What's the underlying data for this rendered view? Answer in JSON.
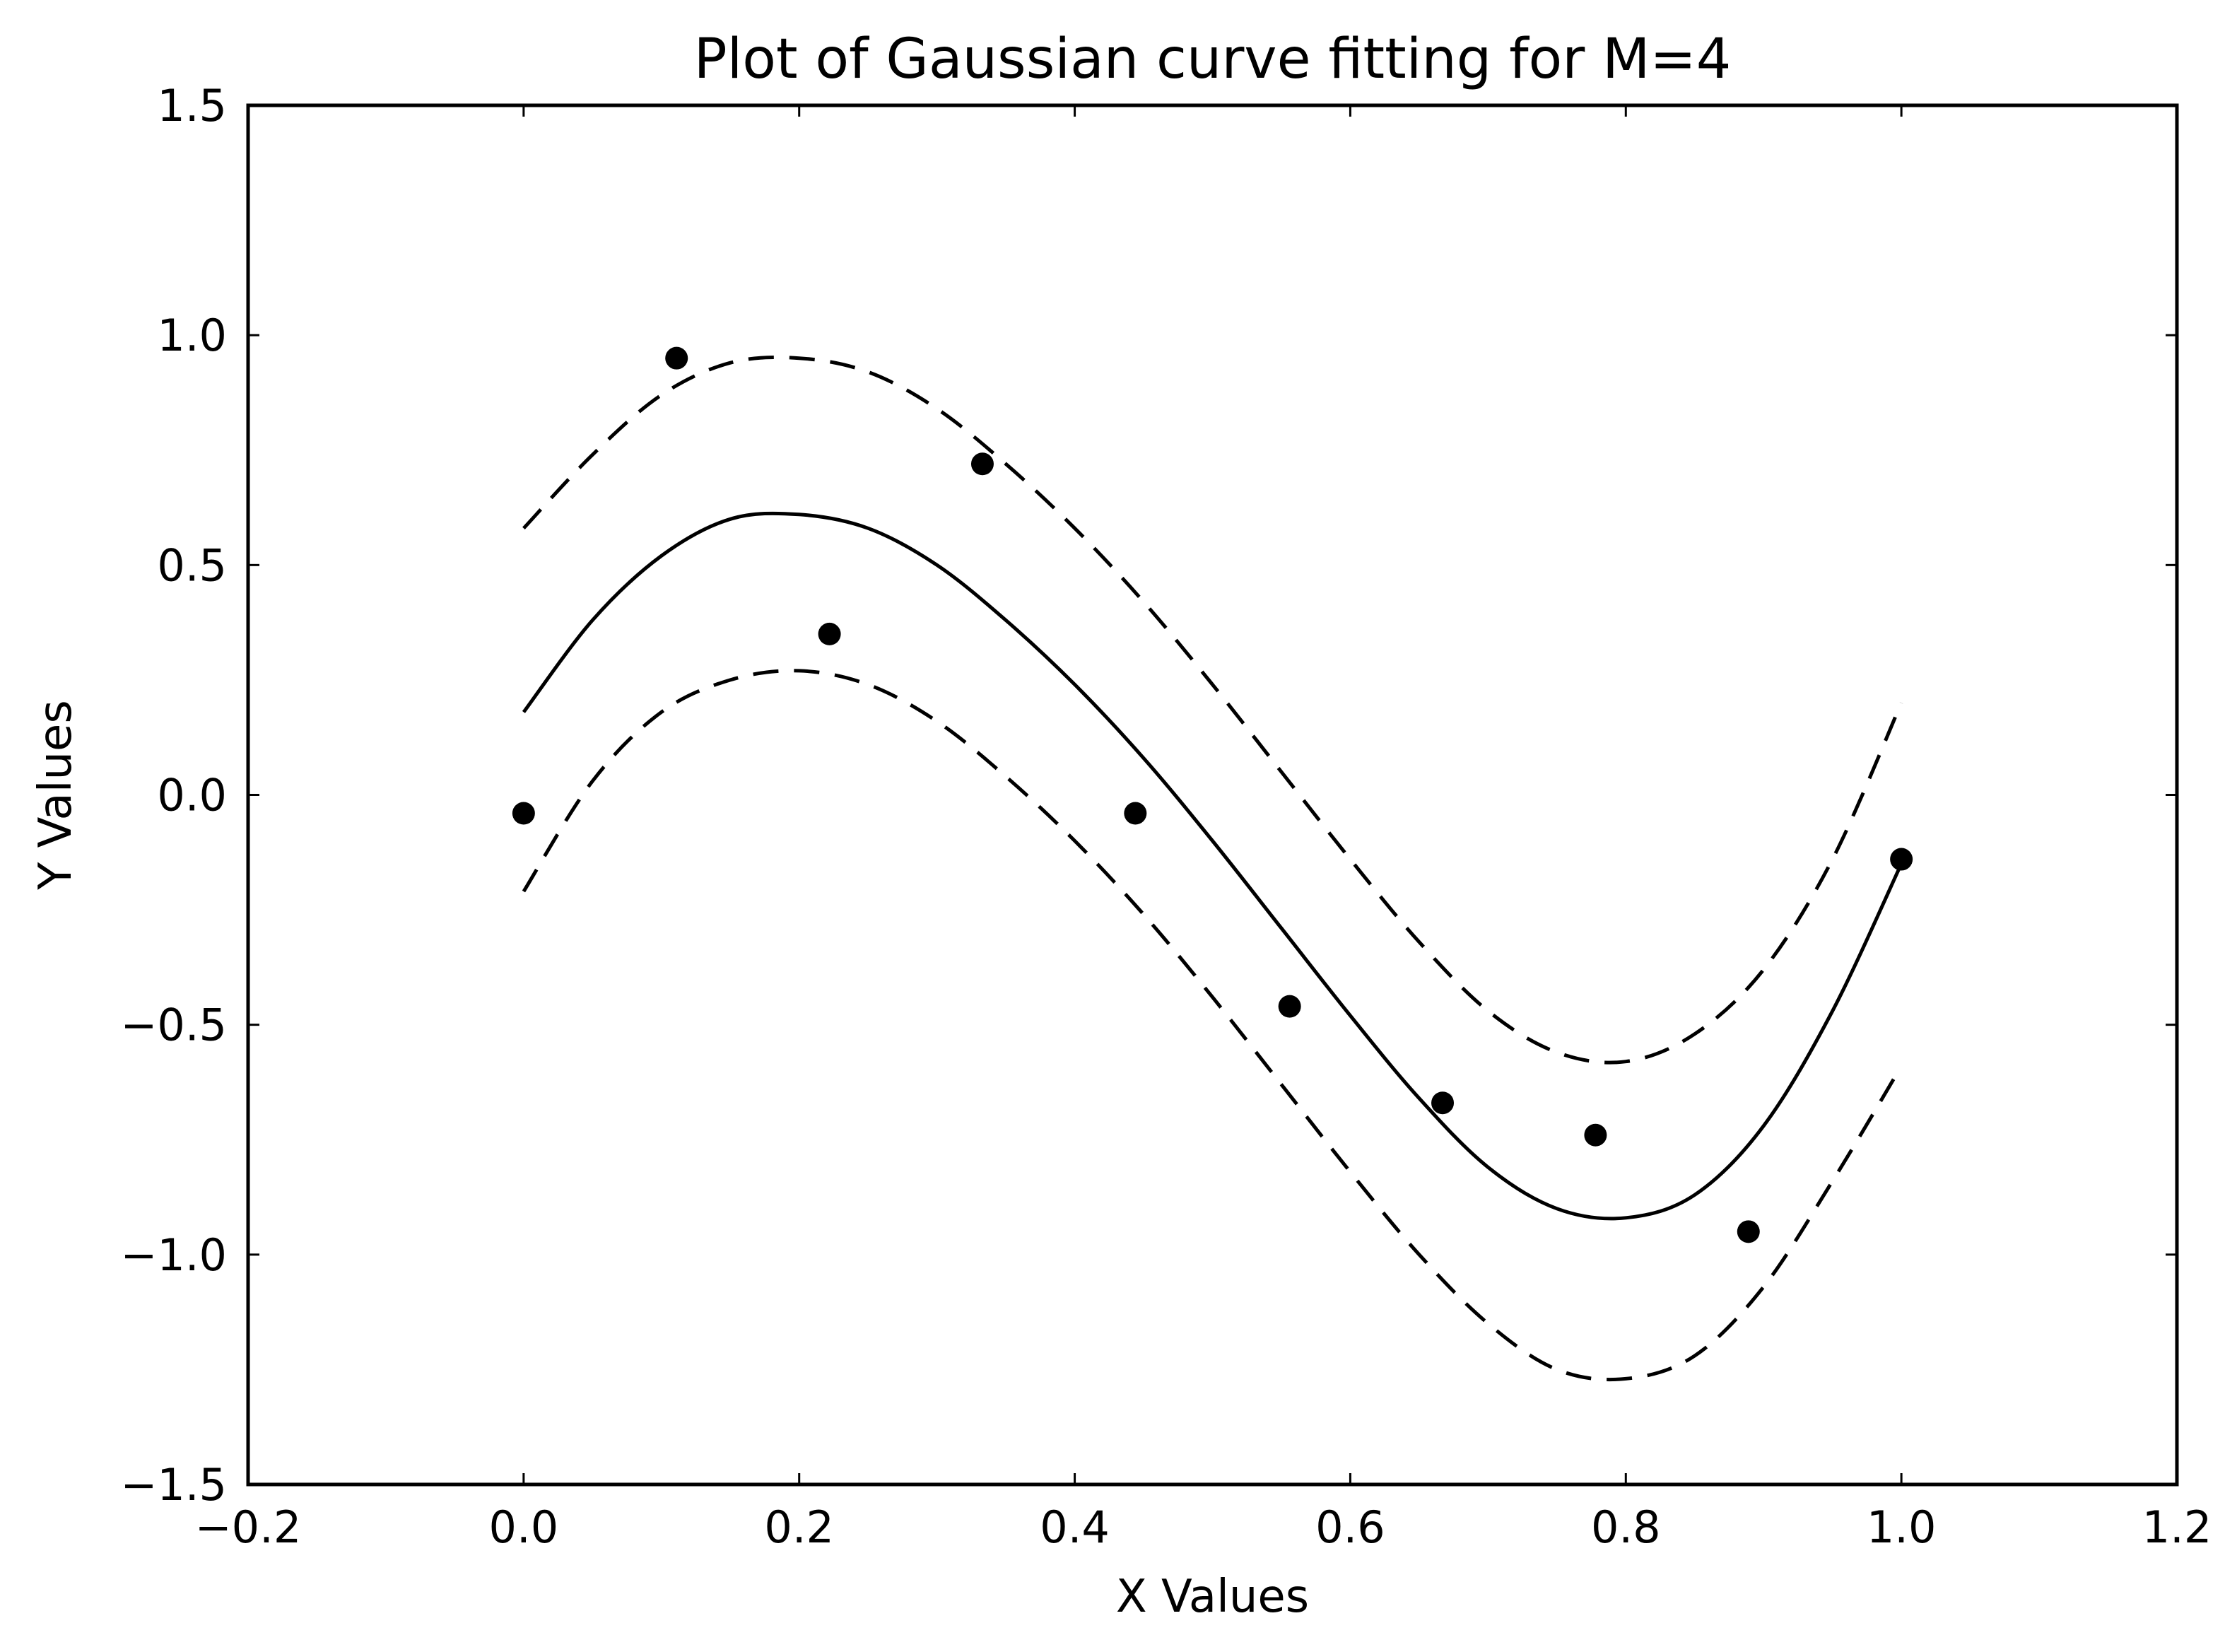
{
  "chart_data": {
    "type": "line",
    "title": "Plot of Gaussian curve fitting for M=4",
    "xlabel": "X Values",
    "ylabel": "Y Values",
    "xlim": [
      -0.2,
      1.2
    ],
    "ylim": [
      -1.5,
      1.5
    ],
    "x_ticks": [
      -0.2,
      0.0,
      0.2,
      0.4,
      0.6,
      0.8,
      1.0,
      1.2
    ],
    "x_tick_labels": [
      "−0.2",
      "0.0",
      "0.2",
      "0.4",
      "0.6",
      "0.8",
      "1.0",
      "1.2"
    ],
    "y_ticks": [
      1.5,
      1.0,
      0.5,
      0.0,
      -0.5,
      -1.0,
      -1.5
    ],
    "y_tick_labels": [
      "1.5",
      "1.0",
      "0.5",
      "0.0",
      "−0.5",
      "−1.0",
      "−1.5"
    ],
    "grid": false,
    "legend": "none",
    "colors": {
      "line": "#000000",
      "marker": "#000000",
      "background": "#ffffff"
    },
    "series": [
      {
        "style": "markers",
        "x": [
          0.0,
          0.111,
          0.222,
          0.333,
          0.444,
          0.556,
          0.667,
          0.778,
          0.889,
          1.0
        ],
        "y": [
          -0.04,
          0.95,
          0.35,
          0.72,
          -0.04,
          -0.46,
          -0.67,
          -0.74,
          -0.95,
          -0.14
        ]
      },
      {
        "style": "solid",
        "x": [
          0.0,
          0.05,
          0.1,
          0.15,
          0.2,
          0.25,
          0.3,
          0.35,
          0.4,
          0.45,
          0.5,
          0.55,
          0.6,
          0.65,
          0.7,
          0.75,
          0.8,
          0.85,
          0.9,
          0.95,
          1.0
        ],
        "y": [
          0.18,
          0.38,
          0.52,
          0.6,
          0.61,
          0.58,
          0.5,
          0.38,
          0.24,
          0.08,
          -0.1,
          -0.29,
          -0.48,
          -0.66,
          -0.81,
          -0.9,
          -0.92,
          -0.87,
          -0.72,
          -0.47,
          -0.15
        ]
      },
      {
        "style": "dashed",
        "x": [
          0.0,
          0.05,
          0.1,
          0.15,
          0.2,
          0.25,
          0.3,
          0.35,
          0.4,
          0.45,
          0.5,
          0.55,
          0.6,
          0.65,
          0.7,
          0.75,
          0.8,
          0.85,
          0.9,
          0.95,
          1.0
        ],
        "y": [
          0.58,
          0.74,
          0.87,
          0.94,
          0.95,
          0.92,
          0.84,
          0.72,
          0.58,
          0.42,
          0.24,
          0.05,
          -0.14,
          -0.32,
          -0.47,
          -0.56,
          -0.58,
          -0.52,
          -0.38,
          -0.14,
          0.2
        ]
      },
      {
        "style": "dashed",
        "x": [
          0.0,
          0.05,
          0.1,
          0.15,
          0.2,
          0.25,
          0.3,
          0.35,
          0.4,
          0.45,
          0.5,
          0.55,
          0.6,
          0.65,
          0.7,
          0.75,
          0.8,
          0.85,
          0.9,
          0.95,
          1.0
        ],
        "y": [
          -0.21,
          0.03,
          0.18,
          0.25,
          0.27,
          0.24,
          0.16,
          0.04,
          -0.1,
          -0.26,
          -0.44,
          -0.63,
          -0.82,
          -1.0,
          -1.15,
          -1.25,
          -1.27,
          -1.22,
          -1.07,
          -0.84,
          -0.59
        ]
      }
    ]
  }
}
